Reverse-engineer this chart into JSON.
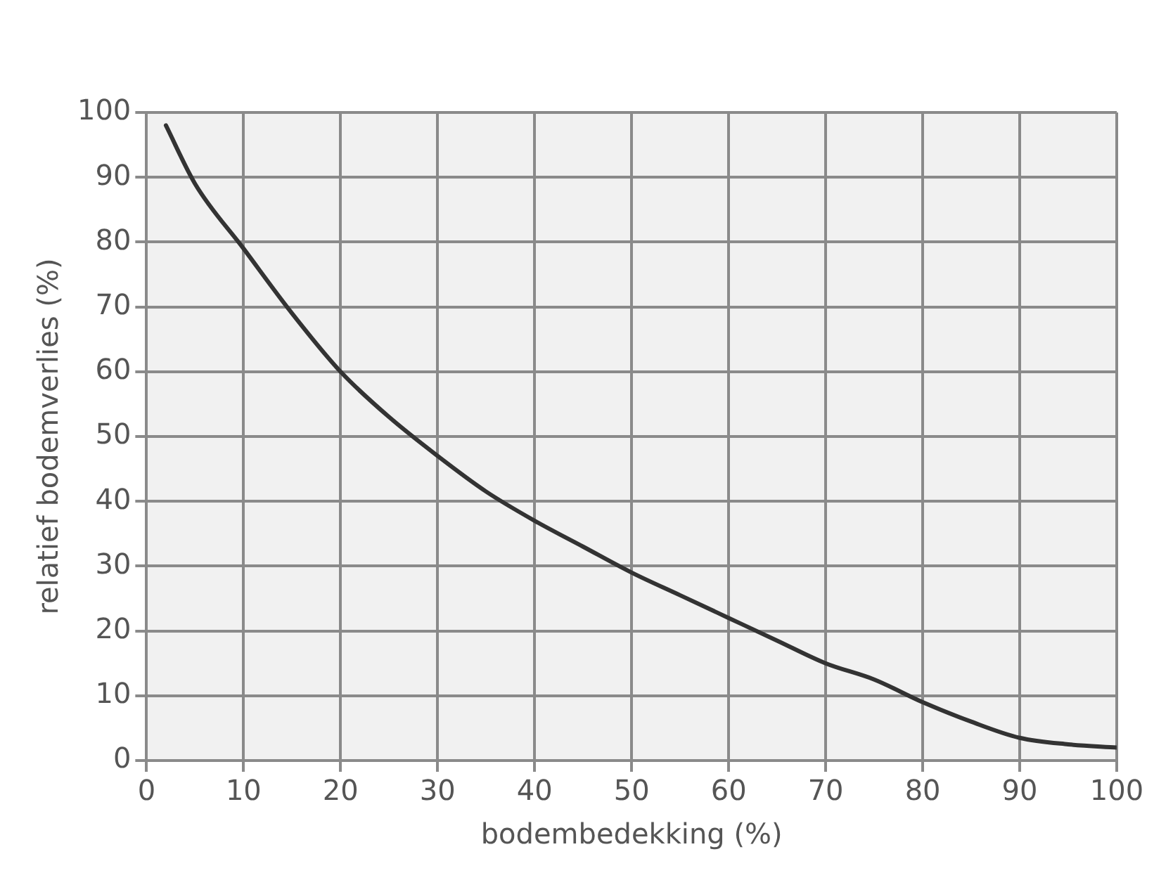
{
  "chart_data": {
    "type": "line",
    "xlabel": "bodembedekking (%)",
    "ylabel": "relatief bodemverlies (%)",
    "x": [
      2,
      5,
      10,
      15,
      20,
      25,
      30,
      35,
      40,
      45,
      50,
      55,
      60,
      65,
      70,
      75,
      80,
      85,
      90,
      95,
      100
    ],
    "series": [
      {
        "color": "#333333",
        "values": [
          98,
          89,
          79,
          69,
          60,
          53,
          47,
          41.5,
          37,
          33,
          29,
          25.5,
          22,
          18.5,
          15,
          12.5,
          9,
          6,
          3.5,
          2.5,
          2
        ]
      }
    ],
    "xlim": [
      0,
      100
    ],
    "ylim": [
      0,
      100
    ],
    "xticks": [
      0,
      10,
      20,
      30,
      40,
      50,
      60,
      70,
      80,
      90,
      100
    ],
    "yticks": [
      0,
      10,
      20,
      30,
      40,
      50,
      60,
      70,
      80,
      90,
      100
    ],
    "grid": true,
    "legend": false,
    "marker": "none",
    "line_style": "solid"
  }
}
